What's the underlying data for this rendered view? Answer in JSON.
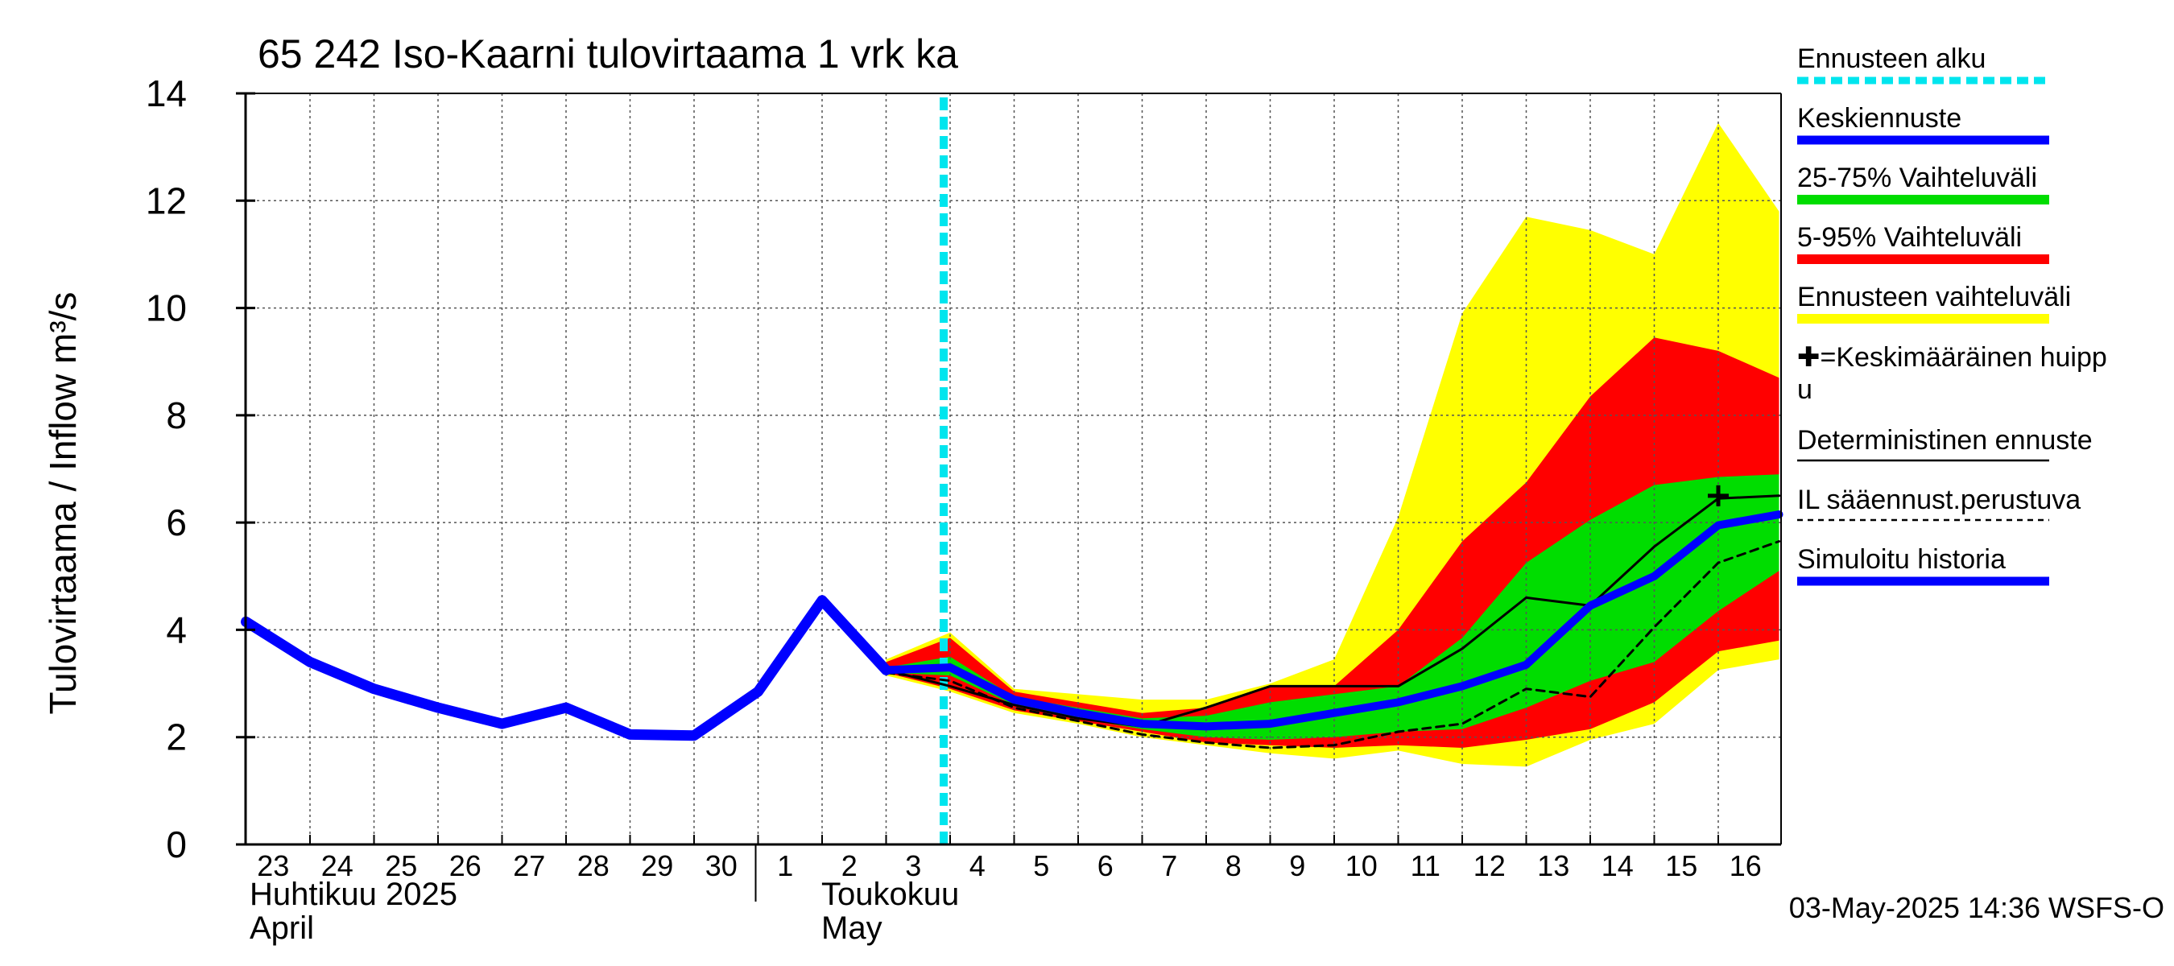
{
  "chart_data": {
    "type": "line",
    "title": "65 242 Iso-Kaarni tulovirtaama 1 vrk ka",
    "ylabel": "Tulovirtaama / Inflow   m³/s",
    "ylim": [
      0,
      14
    ],
    "yticks": [
      0,
      2,
      4,
      6,
      8,
      10,
      12,
      14
    ],
    "x_tick_labels": [
      "23",
      "24",
      "25",
      "26",
      "27",
      "28",
      "29",
      "30",
      "1",
      "2",
      "3",
      "4",
      "5",
      "6",
      "7",
      "8",
      "9",
      "10",
      "11",
      "12",
      "13",
      "14",
      "15",
      "16"
    ],
    "month_labels": [
      {
        "line1": "Huhtikuu  2025",
        "line2": "April"
      },
      {
        "line1": "Toukokuu",
        "line2": "May"
      }
    ],
    "forecast_start": "3",
    "timestamp": "03-May-2025 14:36 WSFS-O",
    "grid": true,
    "legend_placement": "right",
    "legend": [
      {
        "label": "Ennusteen alku",
        "style": "dashed",
        "color": "#00e5ee"
      },
      {
        "label": "Keskiennuste",
        "style": "line",
        "color": "#0000ff"
      },
      {
        "label": "25-75% Vaihteluväli",
        "style": "band",
        "color": "#00dd00"
      },
      {
        "label": "5-95% Vaihteluväli",
        "style": "band",
        "color": "#ff0000"
      },
      {
        "label": "Ennusteen vaihteluväli",
        "style": "band",
        "color": "#ffff00"
      },
      {
        "label": "✚=Keskimääräinen huipp",
        "label2": "u",
        "style": "none",
        "color": "#000000"
      },
      {
        "label": "Deterministinen ennuste",
        "style": "thin",
        "color": "#000000"
      },
      {
        "label": "IL sääennust.perustuva",
        "style": "dotted",
        "color": "#000000"
      },
      {
        "label": "Simuloitu historia",
        "style": "line",
        "color": "#0000ff"
      }
    ],
    "series": [
      {
        "name": "Simuloitu historia",
        "x": [
          0,
          1,
          2,
          3,
          4,
          5,
          6,
          7,
          8,
          9,
          10
        ],
        "y": [
          4.15,
          3.4,
          2.9,
          2.55,
          2.25,
          2.55,
          2.05,
          2.03,
          2.85,
          4.55,
          3.25
        ]
      },
      {
        "name": "Keskiennuste",
        "x": [
          10,
          11,
          12,
          13,
          14,
          15,
          16,
          17,
          18,
          19,
          20,
          21,
          22,
          23,
          23.95
        ],
        "y": [
          3.25,
          3.3,
          2.7,
          2.45,
          2.25,
          2.2,
          2.25,
          2.45,
          2.65,
          2.95,
          3.35,
          4.45,
          5.0,
          5.95,
          6.15
        ]
      },
      {
        "name": "Deterministinen ennuste",
        "x": [
          9,
          10,
          11,
          12,
          13,
          14,
          15,
          16,
          17,
          18,
          19,
          20,
          21,
          22,
          23,
          23.95
        ],
        "y": [
          4.55,
          3.25,
          2.95,
          2.6,
          2.35,
          2.2,
          2.55,
          2.95,
          2.95,
          2.95,
          3.65,
          4.6,
          4.45,
          5.55,
          6.45,
          6.5
        ]
      },
      {
        "name": "IL sääennust.perustuva",
        "x": [
          10,
          11,
          12,
          13,
          14,
          15,
          16,
          17,
          18,
          19,
          20,
          21,
          22,
          23,
          23.95
        ],
        "y": [
          3.2,
          3.05,
          2.55,
          2.3,
          2.05,
          1.9,
          1.8,
          1.85,
          2.1,
          2.25,
          2.9,
          2.75,
          4.05,
          5.25,
          5.65
        ]
      }
    ],
    "bands": [
      {
        "name": "Ennusteen vaihteluväli",
        "x": [
          10,
          11,
          12,
          13,
          14,
          15,
          16,
          17,
          18,
          19,
          20,
          21,
          22,
          23,
          23.95
        ],
        "upper": [
          3.45,
          3.95,
          2.9,
          2.8,
          2.7,
          2.7,
          3.0,
          3.45,
          6.1,
          9.9,
          11.7,
          11.45,
          11.0,
          13.45,
          11.8
        ],
        "lower": [
          3.15,
          2.85,
          2.45,
          2.25,
          2.0,
          1.85,
          1.7,
          1.6,
          1.75,
          1.5,
          1.45,
          1.95,
          2.25,
          3.25,
          3.45
        ]
      },
      {
        "name": "5-95% Vaihteluväli",
        "x": [
          10,
          11,
          12,
          13,
          14,
          15,
          16,
          17,
          18,
          19,
          20,
          21,
          22,
          23,
          23.95
        ],
        "upper": [
          3.4,
          3.85,
          2.85,
          2.65,
          2.45,
          2.55,
          2.95,
          2.95,
          4.0,
          5.65,
          6.75,
          8.35,
          9.45,
          9.2,
          8.7
        ],
        "lower": [
          3.2,
          2.9,
          2.5,
          2.3,
          2.1,
          1.9,
          1.85,
          1.8,
          1.85,
          1.8,
          1.95,
          2.15,
          2.65,
          3.6,
          3.8
        ]
      },
      {
        "name": "25-75% Vaihteluväli",
        "x": [
          10,
          11,
          12,
          13,
          14,
          15,
          16,
          17,
          18,
          19,
          20,
          21,
          22,
          23,
          23.95
        ],
        "upper": [
          3.3,
          3.5,
          2.75,
          2.55,
          2.35,
          2.4,
          2.65,
          2.8,
          2.95,
          3.85,
          5.25,
          6.05,
          6.7,
          6.85,
          6.9
        ]
      },
      {
        "name": "25-75% lower",
        "x": [
          10,
          11,
          12,
          13,
          14,
          15,
          16,
          17,
          18,
          19,
          20,
          21,
          22,
          23,
          23.95
        ],
        "lower": [
          3.2,
          3.15,
          2.6,
          2.35,
          2.15,
          2.0,
          1.95,
          2.0,
          2.1,
          2.15,
          2.55,
          3.05,
          3.4,
          4.35,
          5.1
        ]
      }
    ],
    "peak_marker": {
      "x": 23,
      "y": 6.5
    }
  }
}
